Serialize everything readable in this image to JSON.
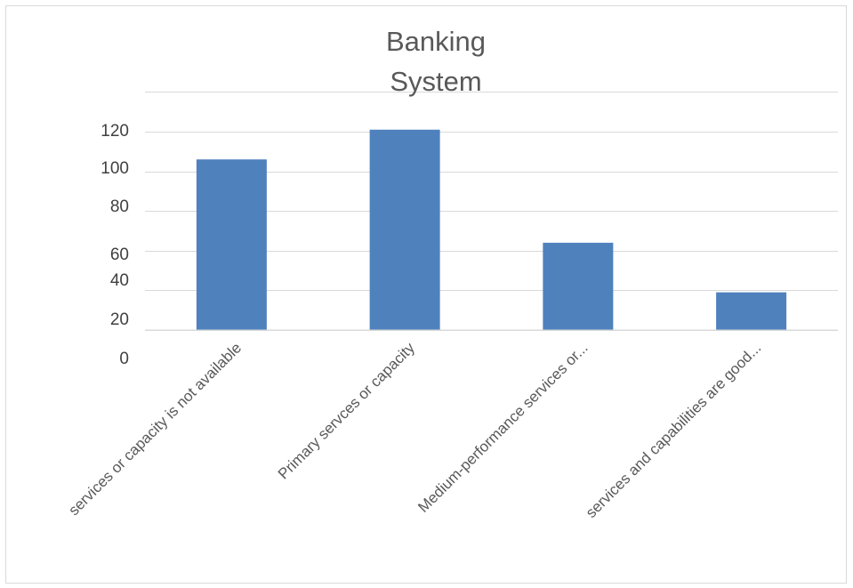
{
  "chart_data": {
    "type": "bar",
    "title": "Banking System",
    "title_lines": [
      "Banking",
      "System"
    ],
    "categories": [
      "services or capacity is not available",
      "Primary servces or capacity",
      "Medium-performance services or...",
      "services and capabilities are good..."
    ],
    "values": [
      106,
      121,
      64,
      39
    ],
    "yticks": [
      0,
      20,
      40,
      60,
      80,
      100,
      120
    ],
    "bar_color": "#4f81bd",
    "grid": true,
    "legend": "none"
  }
}
